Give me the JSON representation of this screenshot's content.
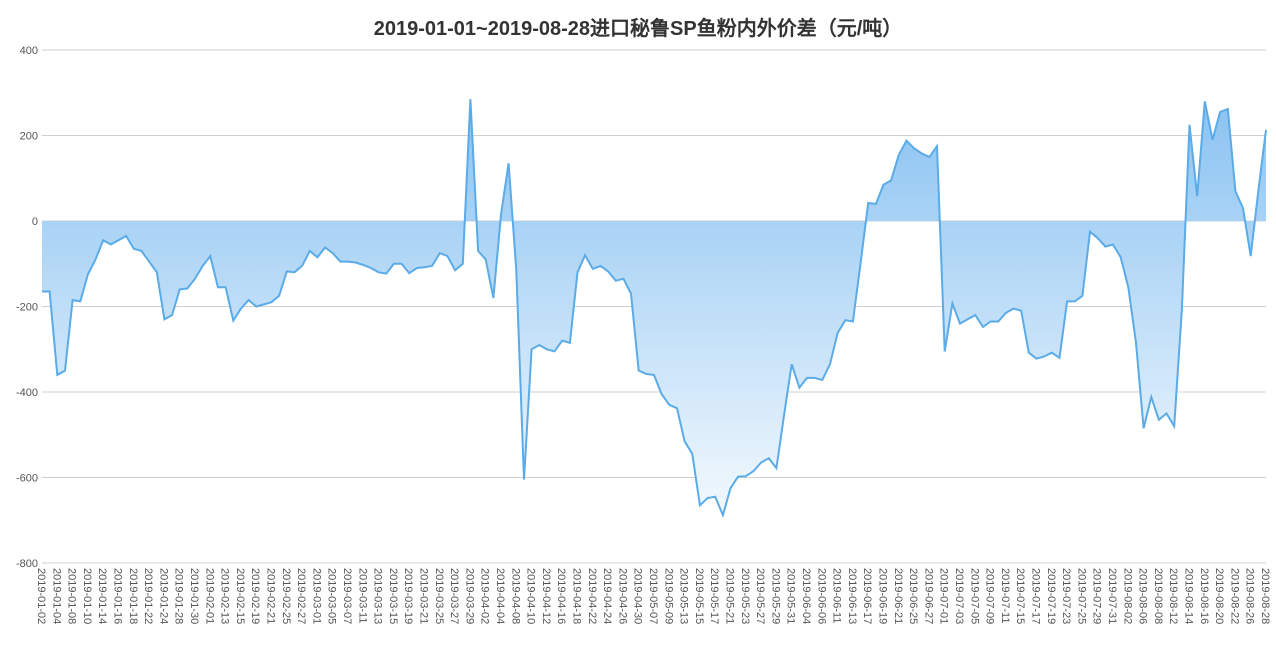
{
  "chart_data": {
    "type": "area",
    "title": "2019-01-01~2019-08-28进口秘鲁SP鱼粉内外价差（元/吨）",
    "categories": [
      "2019-01-02",
      null,
      "2019-01-04",
      null,
      "2019-01-08",
      null,
      "2019-01-10",
      null,
      "2019-01-14",
      null,
      "2019-01-16",
      null,
      "2019-01-18",
      null,
      "2019-01-22",
      null,
      "2019-01-24",
      null,
      "2019-01-28",
      null,
      "2019-01-30",
      null,
      "2019-02-01",
      null,
      "2019-02-13",
      null,
      "2019-02-15",
      null,
      "2019-02-19",
      null,
      "2019-02-21",
      null,
      "2019-02-25",
      null,
      "2019-02-27",
      null,
      "2019-03-01",
      null,
      "2019-03-05",
      null,
      "2019-03-07",
      null,
      "2019-03-11",
      null,
      "2019-03-13",
      null,
      "2019-03-15",
      null,
      "2019-03-19",
      null,
      "2019-03-21",
      null,
      "2019-03-25",
      null,
      "2019-03-27",
      null,
      "2019-03-29",
      null,
      "2019-04-02",
      null,
      "2019-04-04",
      null,
      "2019-04-08",
      null,
      "2019-04-10",
      null,
      "2019-04-12",
      null,
      "2019-04-16",
      null,
      "2019-04-18",
      null,
      "2019-04-22",
      null,
      "2019-04-24",
      null,
      "2019-04-26",
      null,
      "2019-04-30",
      null,
      "2019-05-07",
      null,
      "2019-05-09",
      null,
      "2019-05-13",
      null,
      "2019-05-15",
      null,
      "2019-05-17",
      null,
      "2019-05-21",
      null,
      "2019-05-23",
      null,
      "2019-05-27",
      null,
      "2019-05-29",
      null,
      "2019-05-31",
      null,
      "2019-06-04",
      null,
      "2019-06-06",
      null,
      "2019-06-11",
      null,
      "2019-06-13",
      null,
      "2019-06-17",
      null,
      "2019-06-19",
      null,
      "2019-06-21",
      null,
      "2019-06-25",
      null,
      "2019-06-27",
      null,
      "2019-07-01",
      null,
      "2019-07-03",
      null,
      "2019-07-05",
      null,
      "2019-07-09",
      null,
      "2019-07-11",
      null,
      "2019-07-15",
      null,
      "2019-07-17",
      null,
      "2019-07-19",
      null,
      "2019-07-23",
      null,
      "2019-07-25",
      null,
      "2019-07-29",
      null,
      "2019-07-31",
      null,
      "2019-08-02",
      null,
      "2019-08-06",
      null,
      "2019-08-08",
      null,
      "2019-08-12",
      null,
      "2019-08-14",
      null,
      "2019-08-16",
      null,
      "2019-08-20",
      null,
      "2019-08-22",
      null,
      "2019-08-26",
      null,
      "2019-08-28"
    ],
    "values": [
      -165,
      -165,
      -360,
      -350,
      -185,
      -188,
      -125,
      -90,
      -45,
      -55,
      -45,
      -35,
      -65,
      -70,
      -95,
      -120,
      -230,
      -220,
      -160,
      -158,
      -135,
      -105,
      -82,
      -155,
      -155,
      -233,
      -205,
      -185,
      -200,
      -195,
      -190,
      -175,
      -118,
      -120,
      -105,
      -70,
      -85,
      -62,
      -75,
      -95,
      -95,
      -97,
      -103,
      -110,
      -120,
      -123,
      -100,
      -100,
      -122,
      -110,
      -108,
      -105,
      -75,
      -82,
      -115,
      -100,
      285,
      -70,
      -90,
      -180,
      15,
      135,
      -115,
      -605,
      -300,
      -290,
      -300,
      -305,
      -280,
      -285,
      -120,
      -80,
      -112,
      -105,
      -118,
      -140,
      -135,
      -170,
      -350,
      -358,
      -360,
      -405,
      -430,
      -438,
      -515,
      -545,
      -665,
      -648,
      -645,
      -688,
      -625,
      -598,
      -597,
      -585,
      -565,
      -555,
      -578,
      -455,
      -335,
      -390,
      -367,
      -367,
      -372,
      -335,
      -262,
      -232,
      -235,
      -100,
      42,
      40,
      85,
      95,
      155,
      188,
      170,
      158,
      150,
      175,
      -305,
      -193,
      -240,
      -230,
      -220,
      -248,
      -235,
      -235,
      -215,
      -205,
      -210,
      -308,
      -322,
      -317,
      -308,
      -320,
      -188,
      -188,
      -175,
      -25,
      -40,
      -60,
      -55,
      -85,
      -155,
      -285,
      -485,
      -412,
      -465,
      -450,
      -480,
      -210,
      225,
      58,
      280,
      190,
      255,
      262,
      70,
      30,
      -82,
      70,
      213
    ],
    "color": "#5aabe8",
    "ylim": [
      -800,
      400
    ],
    "yticks": [
      400,
      200,
      0,
      -200,
      -400,
      -600,
      -800
    ],
    "grid": true
  }
}
